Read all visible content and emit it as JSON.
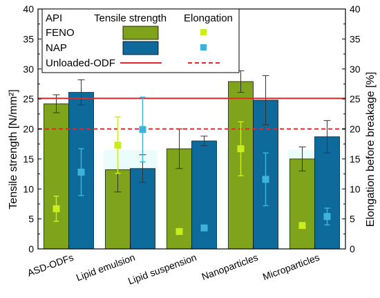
{
  "chart_data": {
    "type": "bar",
    "categories": [
      "ASD-ODFs",
      "Lipid emulsion",
      "Lipid suspension",
      "Nanoparticles",
      "Microparticles"
    ],
    "ylabel_left": "Tensile strength [N/mm²]",
    "ylabel_right": "Elongation before breakage [%]",
    "ylim_left": [
      0,
      40
    ],
    "ylim_right": [
      0,
      40
    ],
    "yticks": [
      "0",
      "5",
      "10",
      "15",
      "20",
      "25",
      "30",
      "35",
      "40"
    ],
    "bar_series": [
      {
        "name": "FENO",
        "color": "#7FA31A",
        "values": [
          24.2,
          13.2,
          16.7,
          27.9,
          15.0
        ],
        "errors": [
          1.5,
          3.7,
          3.3,
          1.8,
          2.0
        ]
      },
      {
        "name": "NAP",
        "color": "#0E6A9A",
        "values": [
          26.1,
          13.4,
          18.0,
          24.8,
          18.7
        ],
        "errors": [
          2.1,
          2.3,
          0.8,
          4.1,
          2.7
        ]
      }
    ],
    "point_series": [
      {
        "name": "FENO",
        "color": "#C8EE1E",
        "values": [
          6.7,
          17.3,
          2.9,
          16.7,
          3.9
        ],
        "errors": [
          2.1,
          4.7,
          0,
          4.5,
          0
        ]
      },
      {
        "name": "NAP",
        "color": "#3DB3DC",
        "values": [
          12.8,
          19.9,
          3.5,
          11.6,
          5.4
        ],
        "errors": [
          3.9,
          5.4,
          0,
          4.4,
          1.4
        ]
      }
    ],
    "reference_lines": [
      {
        "name": "Unloaded-ODF",
        "tensile_strength": 25.1,
        "elongation": 20.0,
        "color": "#E8262A"
      }
    ],
    "grid": false
  },
  "legend": {
    "header_api": "API",
    "header_tensile": "Tensile strength",
    "header_elongation": "Elongation",
    "row_labels": [
      "FENO",
      "NAP",
      "Unloaded-ODF"
    ]
  }
}
